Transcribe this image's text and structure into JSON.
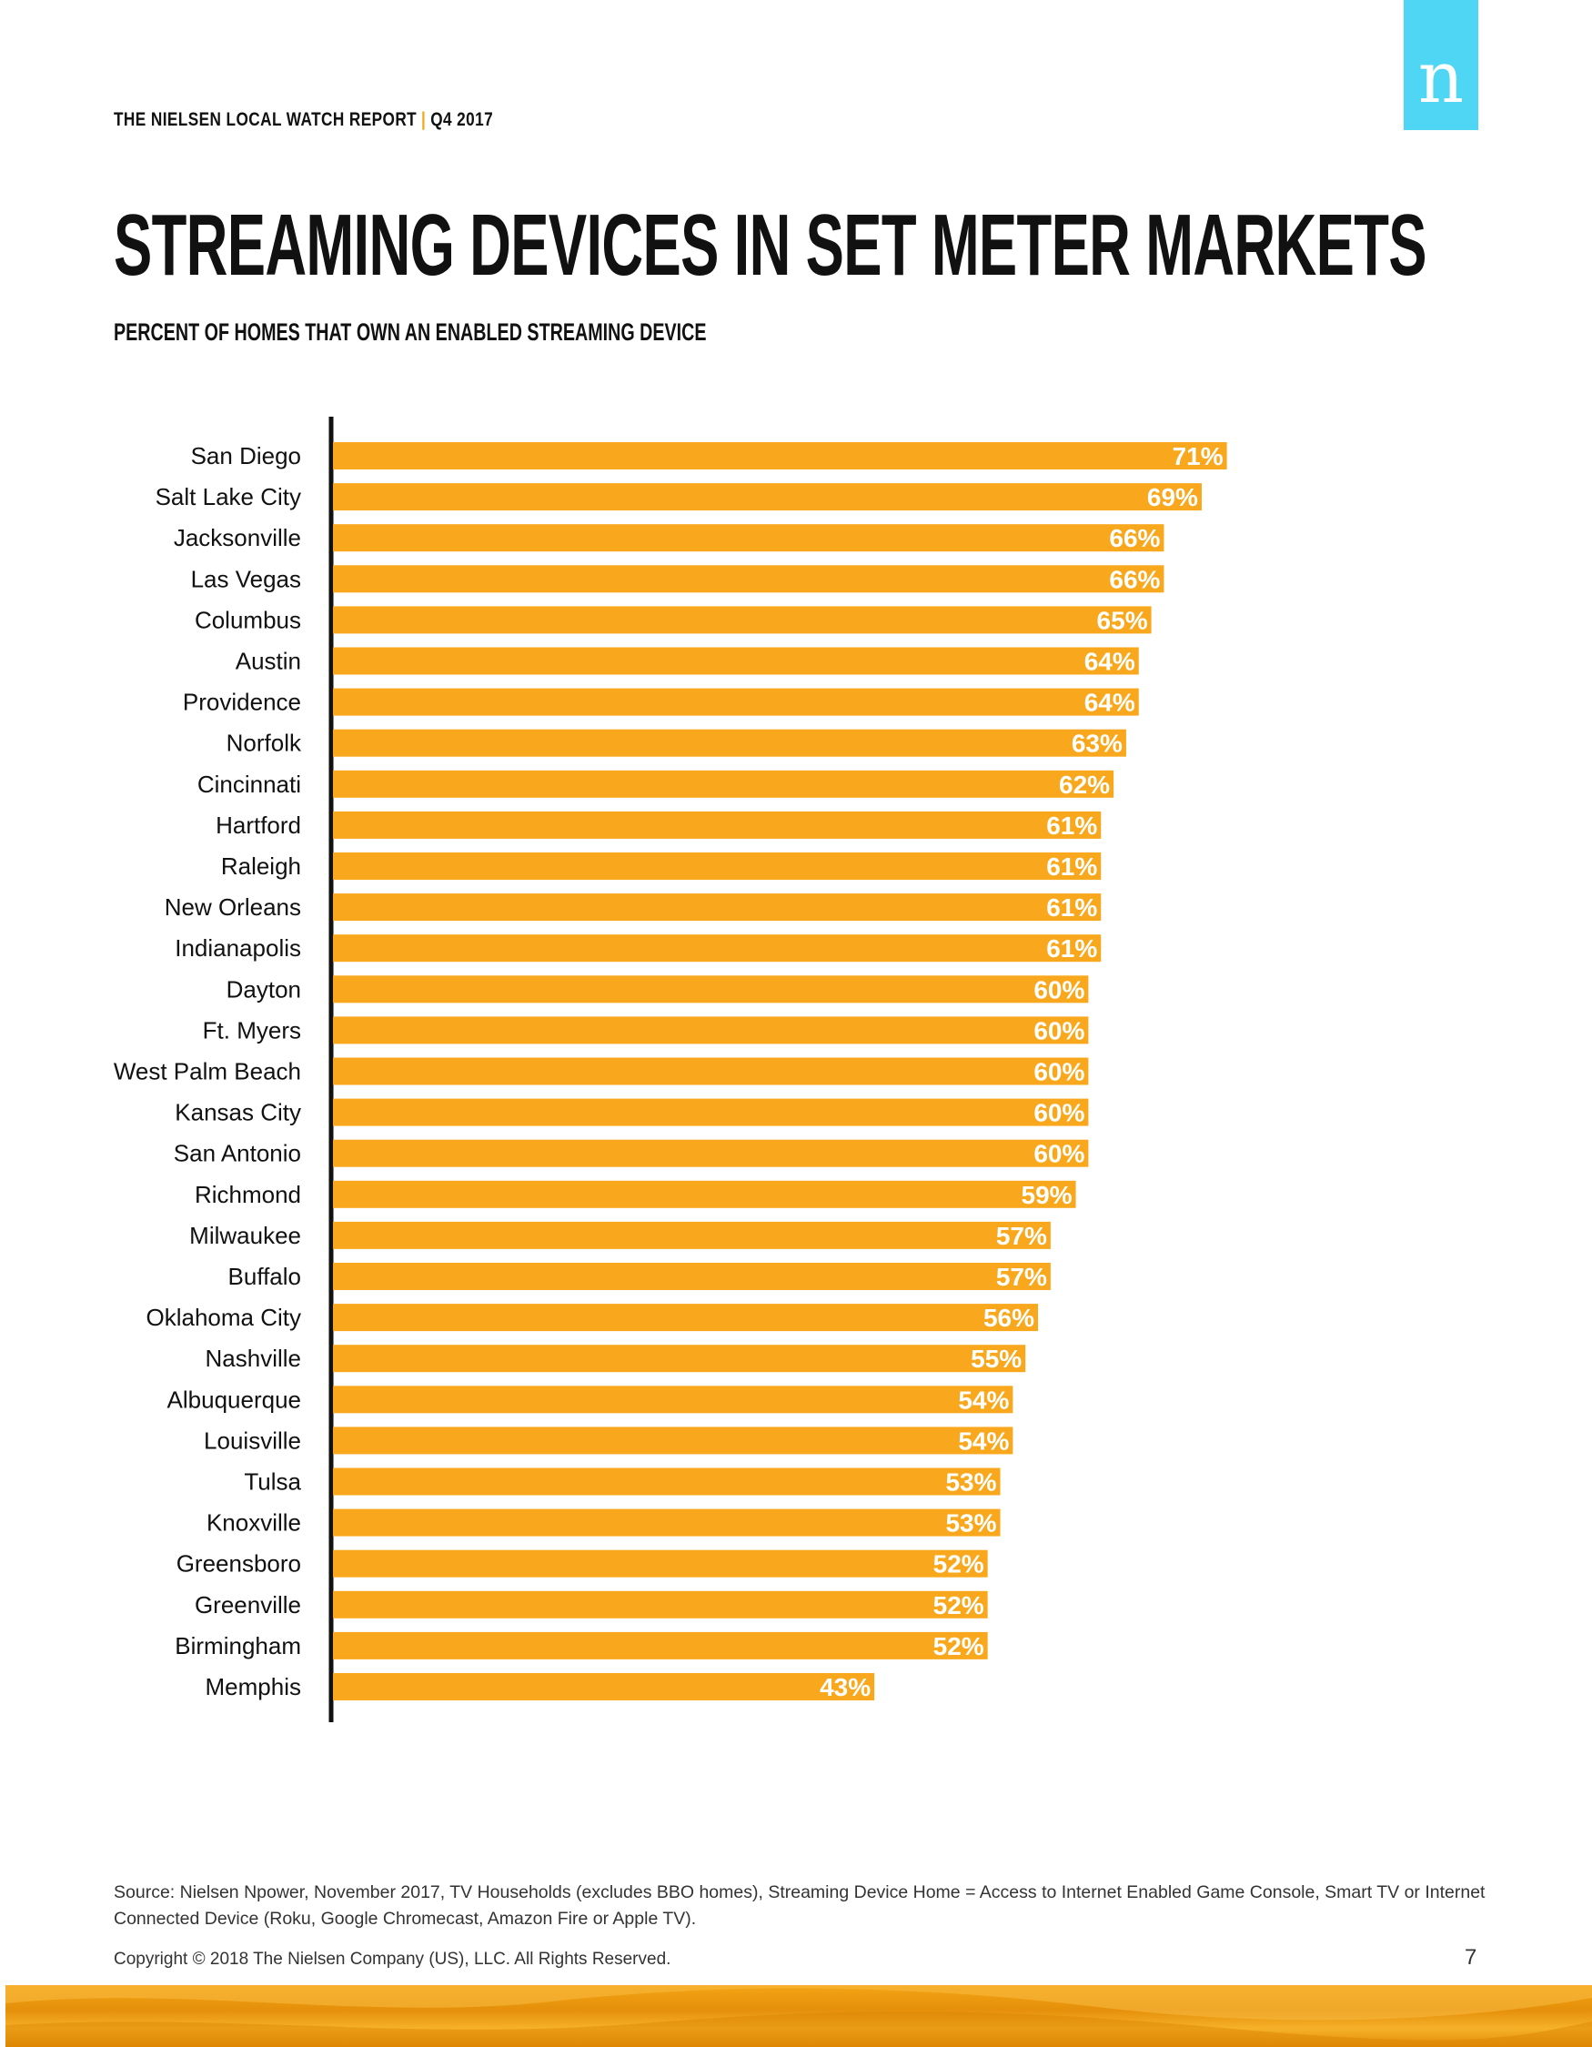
{
  "logo": {
    "letter": "n"
  },
  "header": {
    "report": "THE NIELSEN LOCAL WATCH REPORT",
    "separator": "|",
    "quarter": "Q4 2017"
  },
  "title": "STREAMING DEVICES IN SET METER MARKETS",
  "subtitle": "PERCENT OF HOMES THAT OWN AN ENABLED STREAMING DEVICE",
  "chart_data": {
    "type": "bar",
    "orientation": "horizontal",
    "title": "STREAMING DEVICES IN SET METER MARKETS",
    "subtitle": "PERCENT OF HOMES THAT OWN AN ENABLED STREAMING DEVICE",
    "xlabel": "",
    "ylabel": "",
    "xlim": [
      0,
      100
    ],
    "grid": false,
    "bar_color": "#f9a81d",
    "label_color": "#ffffff",
    "categories": [
      "San Diego",
      "Salt Lake City",
      "Jacksonville",
      "Las Vegas",
      "Columbus",
      "Austin",
      "Providence",
      "Norfolk",
      "Cincinnati",
      "Hartford",
      "Raleigh",
      "New Orleans",
      "Indianapolis",
      "Dayton",
      "Ft. Myers",
      "West Palm Beach",
      "Kansas City",
      "San Antonio",
      "Richmond",
      "Milwaukee",
      "Buffalo",
      "Oklahoma City",
      "Nashville",
      "Albuquerque",
      "Louisville",
      "Tulsa",
      "Knoxville",
      "Greensboro",
      "Greenville",
      "Birmingham",
      "Memphis"
    ],
    "values": [
      71,
      69,
      66,
      66,
      65,
      64,
      64,
      63,
      62,
      61,
      61,
      61,
      61,
      60,
      60,
      60,
      60,
      60,
      59,
      57,
      57,
      56,
      55,
      54,
      54,
      53,
      53,
      52,
      52,
      52,
      43
    ],
    "value_labels": [
      "71%",
      "69%",
      "66%",
      "66%",
      "65%",
      "64%",
      "64%",
      "63%",
      "62%",
      "61%",
      "61%",
      "61%",
      "61%",
      "60%",
      "60%",
      "60%",
      "60%",
      "60%",
      "59%",
      "57%",
      "57%",
      "56%",
      "55%",
      "54%",
      "54%",
      "53%",
      "53%",
      "52%",
      "52%",
      "52%",
      "43%"
    ]
  },
  "footer": {
    "source": "Source: Nielsen Npower, November 2017, TV Households (excludes BBO homes), Streaming Device Home = Access to Internet Enabled Game Console, Smart TV or Internet Connected Device (Roku, Google Chromecast, Amazon Fire or Apple TV).",
    "copyright": "Copyright © 2018 The Nielsen Company (US), LLC. All Rights Reserved.",
    "page_number": "7"
  }
}
